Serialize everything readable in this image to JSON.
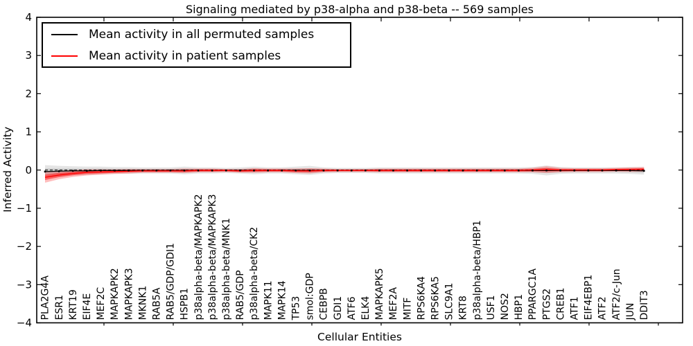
{
  "chart_data": {
    "type": "line",
    "title": "Signaling mediated by p38-alpha and p38-beta -- 569 samples",
    "xlabel": "Cellular Entities",
    "ylabel": "Inferred Activity",
    "ylim": [
      -4,
      4
    ],
    "ytick_labels": [
      "4",
      "3",
      "2",
      "1",
      "0",
      "−1",
      "−2",
      "−3",
      "−4"
    ],
    "grid": false,
    "legend_position": "upper left",
    "categories": [
      "PLA2G4A",
      "ESR1",
      "KRT19",
      "EIF4E",
      "MEF2C",
      "MAPKAPK2",
      "MAPKAPK3",
      "MKNK1",
      "RAB5A",
      "RAB5/GDP/GDI1",
      "HSPB1",
      "p38alpha-beta/MAPKAPK2",
      "p38alpha-beta/MAPKAPK3",
      "p38alpha-beta/MNK1",
      "RAB5/GDP",
      "p38alpha-beta/CK2",
      "MAPK11",
      "MAPK14",
      "TP53",
      "smol:GDP",
      "CEBPB",
      "GDI1",
      "ATF6",
      "ELK4",
      "MAPKAPK5",
      "MEF2A",
      "MITF",
      "RPS6KA4",
      "RPS6KA5",
      "SLC9A1",
      "KRT8",
      "p38alpha-beta/HBP1",
      "USF1",
      "NOS2",
      "HBP1",
      "PPARGC1A",
      "PTGS2",
      "CREB1",
      "ATF1",
      "EIF4EBP1",
      "ATF2",
      "ATF2/c-Jun",
      "JUN",
      "DDIT3"
    ],
    "series": [
      {
        "name": "Mean activity in all permuted samples",
        "color": "#000000",
        "style": "solid",
        "band_color": "#a0a0a0",
        "values": [
          -0.04,
          -0.03,
          -0.02,
          -0.02,
          -0.01,
          -0.01,
          -0.01,
          -0.01,
          -0.01,
          -0.01,
          -0.01,
          -0.01,
          -0.01,
          -0.01,
          -0.01,
          -0.01,
          -0.01,
          -0.01,
          -0.01,
          -0.01,
          -0.01,
          -0.01,
          -0.01,
          -0.01,
          -0.01,
          -0.01,
          -0.01,
          -0.01,
          -0.01,
          -0.01,
          -0.01,
          -0.01,
          -0.01,
          -0.01,
          -0.01,
          -0.01,
          -0.01,
          -0.01,
          -0.01,
          -0.01,
          -0.01,
          -0.01,
          -0.01,
          -0.02
        ],
        "band_halfwidth": [
          0.17,
          0.14,
          0.12,
          0.11,
          0.1,
          0.09,
          0.09,
          0.08,
          0.08,
          0.08,
          0.1,
          0.08,
          0.08,
          0.07,
          0.08,
          0.1,
          0.08,
          0.08,
          0.1,
          0.12,
          0.08,
          0.07,
          0.07,
          0.07,
          0.08,
          0.08,
          0.08,
          0.08,
          0.08,
          0.08,
          0.08,
          0.08,
          0.08,
          0.08,
          0.08,
          0.09,
          0.13,
          0.09,
          0.08,
          0.08,
          0.08,
          0.08,
          0.09,
          0.1
        ]
      },
      {
        "name": "Mean activity in patient samples",
        "color": "#ff0000",
        "style": "solid",
        "band_color": "#ff3333",
        "values": [
          -0.19,
          -0.13,
          -0.09,
          -0.06,
          -0.05,
          -0.04,
          -0.03,
          -0.02,
          -0.02,
          -0.02,
          -0.02,
          -0.01,
          -0.01,
          -0.01,
          -0.02,
          -0.01,
          -0.01,
          -0.01,
          -0.02,
          -0.02,
          -0.01,
          -0.01,
          -0.01,
          -0.01,
          -0.01,
          -0.01,
          -0.01,
          -0.01,
          -0.01,
          -0.01,
          -0.01,
          -0.01,
          -0.01,
          -0.01,
          -0.01,
          0.0,
          0.01,
          0.0,
          0.0,
          0.0,
          0.0,
          0.01,
          0.01,
          0.02
        ],
        "band_halfwidth": [
          0.14,
          0.11,
          0.09,
          0.08,
          0.07,
          0.06,
          0.06,
          0.05,
          0.05,
          0.05,
          0.06,
          0.05,
          0.05,
          0.04,
          0.05,
          0.06,
          0.05,
          0.05,
          0.06,
          0.07,
          0.05,
          0.04,
          0.04,
          0.04,
          0.05,
          0.05,
          0.05,
          0.05,
          0.05,
          0.05,
          0.05,
          0.05,
          0.05,
          0.05,
          0.05,
          0.06,
          0.09,
          0.06,
          0.05,
          0.05,
          0.05,
          0.05,
          0.06,
          0.06
        ]
      }
    ],
    "zero_line": {
      "y": 0,
      "style": "dashed",
      "color": "#000000"
    }
  }
}
